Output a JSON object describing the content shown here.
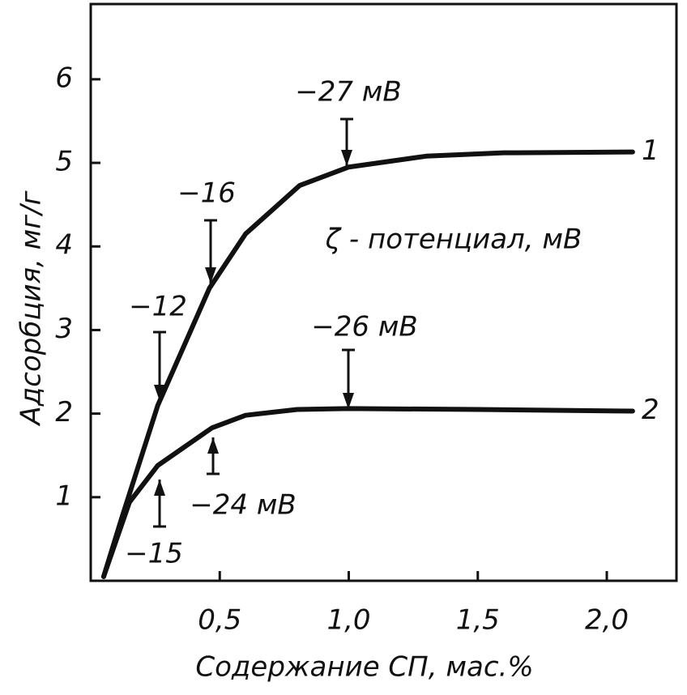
{
  "chart_data": {
    "type": "line",
    "x_label": "Содержание СП, мас.%",
    "y_label": "Адсорбция, мг/г",
    "xlim": [
      0,
      2.27
    ],
    "ylim": [
      0,
      6.9
    ],
    "xticks": [
      {
        "value": 0.5,
        "label": "0,5"
      },
      {
        "value": 1.0,
        "label": "1,0"
      },
      {
        "value": 1.5,
        "label": "1,5"
      },
      {
        "value": 2.0,
        "label": "2,0"
      }
    ],
    "yticks": [
      1,
      2,
      3,
      4,
      5,
      6
    ],
    "series": [
      {
        "name": "1",
        "color": "#111111",
        "x": [
          0.05,
          0.12,
          0.26,
          0.46,
          0.6,
          0.81,
          1.0,
          1.3,
          1.6,
          2.1
        ],
        "values": [
          0.05,
          0.75,
          2.1,
          3.5,
          4.15,
          4.73,
          4.95,
          5.08,
          5.12,
          5.13
        ]
      },
      {
        "name": "2",
        "color": "#111111",
        "x": [
          0.05,
          0.15,
          0.26,
          0.47,
          0.6,
          0.8,
          1.0,
          1.5,
          2.1
        ],
        "values": [
          0.05,
          0.94,
          1.38,
          1.83,
          1.98,
          2.05,
          2.06,
          2.05,
          2.03
        ]
      }
    ],
    "annotations": [
      "−27 мВ",
      "−16",
      "−12",
      "−26 мВ",
      "−24 мВ",
      "−15",
      "ζ - потенциал, мВ"
    ]
  }
}
